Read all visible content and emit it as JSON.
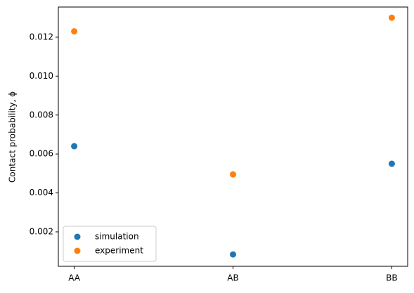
{
  "chart_data": {
    "type": "scatter",
    "ylabel": "Contact probability, ϕ",
    "categories": [
      "AA",
      "AB",
      "BB"
    ],
    "series": [
      {
        "name": "simulation",
        "color": "#1f77b4",
        "values": [
          0.0064,
          0.00084,
          0.0055
        ]
      },
      {
        "name": "experiment",
        "color": "#ff7f0e",
        "values": [
          0.0123,
          0.00495,
          0.013
        ]
      }
    ],
    "ylim": [
      0.00023,
      0.01355
    ],
    "yticks": [
      0.002,
      0.004,
      0.006,
      0.008,
      {
        "value": 0.01,
        "label": "0.010"
      },
      0.012
    ],
    "legend": "lower left"
  }
}
